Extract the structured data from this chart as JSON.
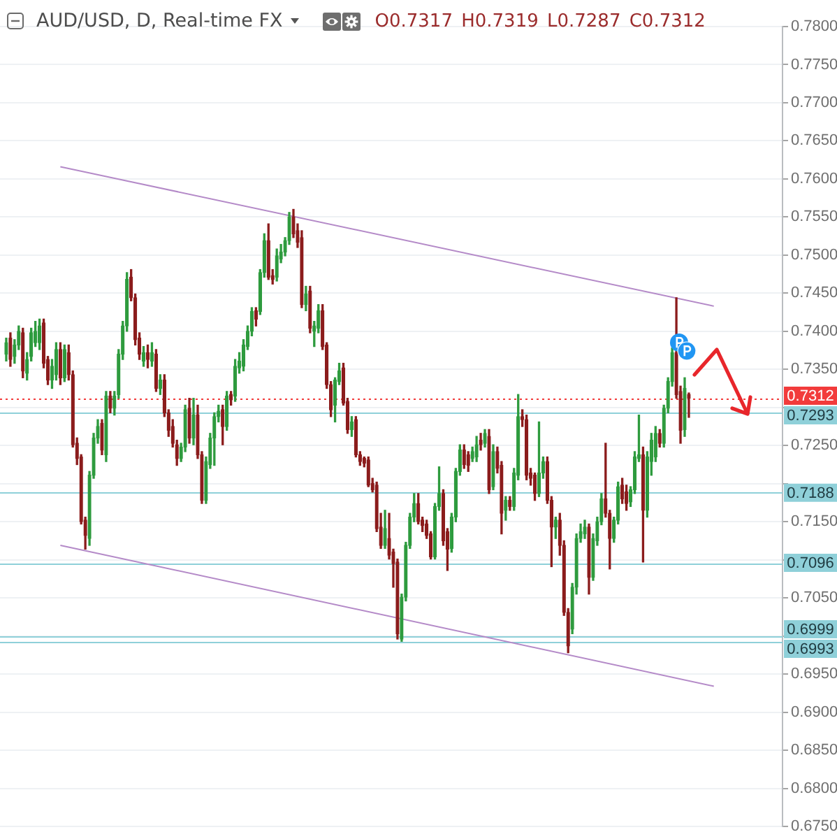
{
  "chart_data": {
    "type": "candlestick",
    "title": "AUD/USD, D, Real-time FX",
    "subtitle": "O0.7317 H0.7319 L0.7287 C0.7312",
    "categories": [
      null,
      null,
      null,
      null,
      null,
      null,
      null,
      null,
      null,
      null,
      null,
      null,
      null,
      null,
      null,
      null,
      null,
      null,
      null,
      null,
      null,
      null,
      null,
      null,
      null,
      null,
      null,
      null,
      null,
      null,
      null,
      null,
      null,
      null,
      null,
      null,
      null,
      null,
      null,
      null,
      null,
      null,
      null,
      null,
      null,
      null,
      null,
      null,
      null,
      null,
      null,
      null,
      null,
      null,
      null,
      null,
      null,
      null,
      null,
      null,
      null,
      null,
      null,
      null,
      null,
      null,
      null,
      null,
      null,
      null,
      null,
      null,
      null,
      null,
      null,
      null,
      null,
      null,
      null,
      null,
      null,
      null,
      null,
      null,
      null,
      null,
      null,
      null,
      null,
      null,
      null,
      null,
      null,
      null,
      null,
      null,
      null,
      null,
      null,
      null,
      null,
      null,
      null,
      null,
      null,
      null,
      null,
      null,
      null,
      null,
      null,
      null,
      null,
      null,
      null,
      null,
      null,
      null,
      null,
      null,
      null,
      null,
      null,
      null,
      null,
      null,
      null,
      null,
      null,
      null,
      null,
      null,
      null,
      null,
      null,
      null,
      null,
      null,
      null,
      null,
      null,
      null,
      null,
      null,
      null,
      null,
      null,
      null,
      null,
      null,
      null,
      null,
      null,
      null,
      null,
      null,
      null,
      null,
      null,
      null,
      null,
      null,
      null,
      null,
      null,
      null,
      null,
      null,
      null,
      null,
      null,
      null,
      null,
      null,
      null,
      null,
      null,
      null,
      null,
      null,
      null,
      null,
      null,
      null,
      null,
      null,
      null,
      null
    ],
    "ohlc": [
      null,
      [
        0.737,
        0.7391,
        0.7361,
        0.7385
      ],
      [
        0.7391,
        0.7398,
        0.7354,
        0.7363
      ],
      [
        0.7367,
        0.7389,
        0.7358,
        0.7382
      ],
      [
        0.7382,
        0.7407,
        0.7376,
        0.74
      ],
      [
        0.7398,
        0.7404,
        0.7339,
        0.7348
      ],
      [
        0.7345,
        0.7372,
        0.7336,
        0.7363
      ],
      [
        0.7367,
        0.7404,
        0.7361,
        0.7398
      ],
      [
        0.7385,
        0.7413,
        0.738,
        0.74
      ],
      [
        0.7385,
        0.7416,
        0.7376,
        0.7407
      ],
      [
        0.7411,
        0.7416,
        0.7352,
        0.7358
      ],
      [
        0.7363,
        0.7367,
        0.733,
        0.7336
      ],
      [
        0.7336,
        0.7363,
        0.7325,
        0.7354
      ],
      [
        0.7343,
        0.7385,
        0.7336,
        0.7376
      ],
      [
        0.7376,
        0.7385,
        0.733,
        0.7339
      ],
      [
        0.7339,
        0.7382,
        0.7334,
        0.7376
      ],
      [
        0.7372,
        0.7382,
        0.7336,
        0.7343
      ],
      [
        0.7343,
        0.7348,
        0.7248,
        0.7251
      ],
      [
        0.7253,
        0.726,
        0.7225,
        0.7233
      ],
      [
        0.7235,
        0.7238,
        0.7147,
        0.715
      ],
      [
        0.7152,
        0.7156,
        0.7114,
        0.7132
      ],
      [
        0.7128,
        0.7216,
        0.7119,
        0.7211
      ],
      [
        0.7211,
        0.7266,
        0.7207,
        0.726
      ],
      [
        0.726,
        0.7284,
        0.7253,
        0.7275
      ],
      [
        0.7279,
        0.7284,
        0.7238,
        0.7244
      ],
      [
        0.7238,
        0.7321,
        0.7229,
        0.7315
      ],
      [
        0.7315,
        0.7321,
        0.7293,
        0.7299
      ],
      [
        0.7299,
        0.7321,
        0.729,
        0.7315
      ],
      [
        0.7317,
        0.7376,
        0.7312,
        0.737
      ],
      [
        0.737,
        0.7413,
        0.7363,
        0.7407
      ],
      [
        0.7407,
        0.7477,
        0.74,
        0.7468
      ],
      [
        0.7471,
        0.7481,
        0.744,
        0.7444
      ],
      [
        0.7444,
        0.7449,
        0.7382,
        0.7389
      ],
      [
        0.7391,
        0.7398,
        0.7363,
        0.737
      ],
      [
        0.7361,
        0.738,
        0.7354,
        0.7372
      ],
      [
        0.7372,
        0.7382,
        0.7352,
        0.7363
      ],
      [
        0.7361,
        0.7385,
        0.7354,
        0.7372
      ],
      [
        0.737,
        0.7376,
        0.7321,
        0.7325
      ],
      [
        0.7325,
        0.7343,
        0.7317,
        0.7336
      ],
      [
        0.7336,
        0.7343,
        0.7288,
        0.7293
      ],
      [
        0.7293,
        0.7297,
        0.7262,
        0.727
      ],
      [
        0.7275,
        0.7284,
        0.7248,
        0.7253
      ],
      [
        0.7251,
        0.7257,
        0.7224,
        0.7233
      ],
      [
        0.7233,
        0.7253,
        0.7229,
        0.7248
      ],
      [
        0.7248,
        0.7303,
        0.7242,
        0.7297
      ],
      [
        0.7299,
        0.7312,
        0.7253,
        0.726
      ],
      [
        0.726,
        0.7312,
        0.7251,
        0.729
      ],
      [
        0.729,
        0.7303,
        0.7233,
        0.7238
      ],
      [
        0.7238,
        0.7242,
        0.7174,
        0.7178
      ],
      [
        0.7178,
        0.7235,
        0.7174,
        0.7229
      ],
      [
        0.7225,
        0.7266,
        0.722,
        0.726
      ],
      [
        0.726,
        0.7293,
        0.7224,
        0.7288
      ],
      [
        0.7288,
        0.7303,
        0.7281,
        0.7295
      ],
      [
        0.7297,
        0.7303,
        0.7251,
        0.7275
      ],
      [
        0.7275,
        0.7321,
        0.727,
        0.7315
      ],
      [
        0.7317,
        0.7321,
        0.7303,
        0.731
      ],
      [
        0.7315,
        0.7363,
        0.7308,
        0.7354
      ],
      [
        0.7352,
        0.7372,
        0.7345,
        0.7361
      ],
      [
        0.7354,
        0.7389,
        0.7348,
        0.7382
      ],
      [
        0.738,
        0.7407,
        0.7376,
        0.74
      ],
      [
        0.74,
        0.7431,
        0.7394,
        0.7426
      ],
      [
        0.7427,
        0.7431,
        0.7407,
        0.7416
      ],
      [
        0.7426,
        0.7481,
        0.7422,
        0.7477
      ],
      [
        0.7477,
        0.7528,
        0.7471,
        0.7519
      ],
      [
        0.7519,
        0.7541,
        0.7468,
        0.7471
      ],
      [
        0.7473,
        0.7481,
        0.7462,
        0.7468
      ],
      [
        0.7471,
        0.7508,
        0.7466,
        0.7499
      ],
      [
        0.7495,
        0.7514,
        0.749,
        0.7504
      ],
      [
        0.7504,
        0.7523,
        0.7499,
        0.7519
      ],
      [
        0.7519,
        0.7556,
        0.7514,
        0.755
      ],
      [
        0.755,
        0.756,
        0.7523,
        0.7528
      ],
      [
        0.7532,
        0.7541,
        0.751,
        0.7517
      ],
      [
        0.7523,
        0.7532,
        0.7431,
        0.7435
      ],
      [
        0.7435,
        0.7459,
        0.7427,
        0.7449
      ],
      [
        0.7453,
        0.7459,
        0.7398,
        0.7404
      ],
      [
        0.74,
        0.7413,
        0.738,
        0.7407
      ],
      [
        0.7404,
        0.7435,
        0.7398,
        0.7427
      ],
      [
        0.7427,
        0.7435,
        0.7376,
        0.738
      ],
      [
        0.7382,
        0.7385,
        0.7325,
        0.733
      ],
      [
        0.733,
        0.7334,
        0.7288,
        0.7297
      ],
      [
        0.7303,
        0.7339,
        0.7281,
        0.7336
      ],
      [
        0.7334,
        0.7358,
        0.733,
        0.7348
      ],
      [
        0.7352,
        0.7358,
        0.7303,
        0.7306
      ],
      [
        0.7308,
        0.7312,
        0.7266,
        0.7271
      ],
      [
        0.7271,
        0.7288,
        0.7262,
        0.7281
      ],
      [
        0.7284,
        0.7288,
        0.7235,
        0.7238
      ],
      [
        0.7238,
        0.7242,
        0.7224,
        0.7229
      ],
      [
        0.7233,
        0.7235,
        0.7222,
        0.7227
      ],
      [
        0.7231,
        0.7235,
        0.7196,
        0.7198
      ],
      [
        0.72,
        0.7207,
        0.7189,
        0.7192
      ],
      [
        0.7198,
        0.7202,
        0.7137,
        0.7141
      ],
      [
        0.7143,
        0.7161,
        0.7115,
        0.7119
      ],
      [
        0.7119,
        0.7165,
        0.7115,
        0.7141
      ],
      [
        0.7128,
        0.7161,
        0.7101,
        0.7106
      ],
      [
        0.711,
        0.7114,
        0.7064,
        0.7095
      ],
      [
        0.7097,
        0.7101,
        0.6996,
        0.7003
      ],
      [
        0.6996,
        0.7055,
        0.6993,
        0.7051
      ],
      [
        0.7051,
        0.7123,
        0.7046,
        0.7119
      ],
      [
        0.7119,
        0.7161,
        0.7115,
        0.7156
      ],
      [
        0.7156,
        0.7187,
        0.715,
        0.7174
      ],
      [
        0.7174,
        0.7187,
        0.7147,
        0.715
      ],
      [
        0.7152,
        0.7156,
        0.7137,
        0.7145
      ],
      [
        0.7147,
        0.7152,
        0.7128,
        0.7132
      ],
      [
        0.7134,
        0.7137,
        0.7101,
        0.7104
      ],
      [
        0.7104,
        0.7174,
        0.7101,
        0.717
      ],
      [
        0.717,
        0.7222,
        0.7165,
        0.7187
      ],
      [
        0.7187,
        0.7192,
        0.7119,
        0.7125
      ],
      [
        0.7137,
        0.7141,
        0.7086,
        0.7114
      ],
      [
        0.7115,
        0.7161,
        0.711,
        0.7156
      ],
      [
        0.7156,
        0.722,
        0.715,
        0.7216
      ],
      [
        0.7216,
        0.7251,
        0.7211,
        0.7244
      ],
      [
        0.7244,
        0.7251,
        0.722,
        0.7225
      ],
      [
        0.7238,
        0.7242,
        0.7216,
        0.7224
      ],
      [
        0.7233,
        0.7248,
        0.7229,
        0.7242
      ],
      [
        0.7235,
        0.7262,
        0.7229,
        0.7251
      ],
      [
        0.7257,
        0.7266,
        0.7244,
        0.7251
      ],
      [
        0.7253,
        0.7271,
        0.7248,
        0.7266
      ],
      [
        0.7262,
        0.7271,
        0.7187,
        0.7192
      ],
      [
        0.7196,
        0.7251,
        0.7192,
        0.7242
      ],
      [
        0.7242,
        0.7248,
        0.7214,
        0.722
      ],
      [
        0.7224,
        0.7229,
        0.7134,
        0.7161
      ],
      [
        0.7165,
        0.7183,
        0.7152,
        0.7178
      ],
      [
        0.7178,
        0.7183,
        0.7165,
        0.717
      ],
      [
        0.717,
        0.722,
        0.7165,
        0.7214
      ],
      [
        0.7211,
        0.7317,
        0.7205,
        0.7288
      ],
      [
        0.7288,
        0.7297,
        0.7275,
        0.7284
      ],
      [
        0.7284,
        0.729,
        0.7205,
        0.7211
      ],
      [
        0.7214,
        0.722,
        0.7198,
        0.7207
      ],
      [
        0.7211,
        0.7214,
        0.7178,
        0.7187
      ],
      [
        0.7187,
        0.7281,
        0.7183,
        0.7214
      ],
      [
        0.7214,
        0.7235,
        0.7207,
        0.7229
      ],
      [
        0.7229,
        0.7235,
        0.7174,
        0.7178
      ],
      [
        0.7178,
        0.7183,
        0.7091,
        0.7143
      ],
      [
        0.7143,
        0.7156,
        0.7128,
        0.7152
      ],
      [
        0.7152,
        0.7161,
        0.7106,
        0.7119
      ],
      [
        0.7119,
        0.7125,
        0.7027,
        0.7031
      ],
      [
        0.7031,
        0.7036,
        0.6978,
        0.6987
      ],
      [
        0.7009,
        0.7069,
        0.7003,
        0.7064
      ],
      [
        0.7064,
        0.7134,
        0.7055,
        0.7128
      ],
      [
        0.7128,
        0.7147,
        0.7123,
        0.7137
      ],
      [
        0.7134,
        0.7152,
        0.7128,
        0.7143
      ],
      [
        0.7143,
        0.7147,
        0.7055,
        0.7077
      ],
      [
        0.7077,
        0.7134,
        0.7073,
        0.7128
      ],
      [
        0.7125,
        0.7156,
        0.7119,
        0.715
      ],
      [
        0.715,
        0.7187,
        0.7146,
        0.718
      ],
      [
        0.718,
        0.7253,
        0.7156,
        0.7161
      ],
      [
        0.7161,
        0.7165,
        0.7088,
        0.7128
      ],
      [
        0.7128,
        0.7156,
        0.7123,
        0.7152
      ],
      [
        0.7152,
        0.7202,
        0.7147,
        0.7196
      ],
      [
        0.7198,
        0.7207,
        0.7174,
        0.718
      ],
      [
        0.7189,
        0.7198,
        0.7165,
        0.7174
      ],
      [
        0.7176,
        0.7196,
        0.717,
        0.7192
      ],
      [
        0.7192,
        0.7242,
        0.7187,
        0.7235
      ],
      [
        0.7233,
        0.729,
        0.7229,
        0.7238
      ],
      [
        0.7238,
        0.7248,
        0.7097,
        0.7165
      ],
      [
        0.7165,
        0.7242,
        0.7156,
        0.7235
      ],
      [
        0.7229,
        0.7266,
        0.7211,
        0.7257
      ],
      [
        0.7235,
        0.7275,
        0.7229,
        0.7266
      ],
      [
        0.7266,
        0.7271,
        0.7248,
        0.7253
      ],
      [
        0.7253,
        0.7303,
        0.7248,
        0.7299
      ],
      [
        0.7299,
        0.7339,
        0.7293,
        0.7334
      ],
      [
        0.7334,
        0.7378,
        0.7328,
        0.7372
      ],
      [
        0.7372,
        0.7444,
        0.7312,
        0.7317
      ],
      [
        0.7321,
        0.7328,
        0.7253,
        0.727
      ],
      [
        0.7271,
        0.7339,
        0.7262,
        0.7325
      ],
      [
        0.7317,
        0.7319,
        0.7287,
        0.7312
      ],
      null,
      null,
      null,
      null,
      null,
      null,
      null,
      null,
      null,
      null,
      null,
      null,
      null,
      null,
      null,
      null,
      null,
      null,
      null,
      null,
      null,
      null
    ],
    "colors": [
      null,
      "#2e9b3e",
      "#8b1c1c",
      "#2e9b3e",
      "#2e9b3e",
      "#8b1c1c",
      "#2e9b3e",
      "#2e9b3e",
      "#2e9b3e",
      "#2e9b3e",
      "#8b1c1c",
      "#8b1c1c",
      "#2e9b3e",
      "#2e9b3e",
      "#8b1c1c",
      "#2e9b3e",
      "#8b1c1c",
      "#8b1c1c",
      "#8b1c1c",
      "#8b1c1c",
      "#8b1c1c",
      "#2e9b3e",
      "#2e9b3e",
      "#2e9b3e",
      "#8b1c1c",
      "#2e9b3e",
      "#8b1c1c",
      "#2e9b3e",
      "#2e9b3e",
      "#2e9b3e",
      "#2e9b3e",
      "#8b1c1c",
      "#8b1c1c",
      "#8b1c1c",
      "#2e9b3e",
      "#8b1c1c",
      "#2e9b3e",
      "#8b1c1c",
      "#2e9b3e",
      "#8b1c1c",
      "#8b1c1c",
      "#8b1c1c",
      "#8b1c1c",
      "#2e9b3e",
      "#2e9b3e",
      "#8b1c1c",
      "#2e9b3e",
      "#8b1c1c",
      "#8b1c1c",
      "#2e9b3e",
      "#2e9b3e",
      "#2e9b3e",
      "#2e9b3e",
      "#8b1c1c",
      "#2e9b3e",
      "#8b1c1c",
      "#2e9b3e",
      "#2e9b3e",
      "#2e9b3e",
      "#2e9b3e",
      "#2e9b3e",
      "#8b1c1c",
      "#2e9b3e",
      "#2e9b3e",
      "#8b1c1c",
      "#8b1c1c",
      "#2e9b3e",
      "#2e9b3e",
      "#2e9b3e",
      "#2e9b3e",
      "#8b1c1c",
      "#8b1c1c",
      "#8b1c1c",
      "#2e9b3e",
      "#8b1c1c",
      "#2e9b3e",
      "#2e9b3e",
      "#8b1c1c",
      "#8b1c1c",
      "#8b1c1c",
      "#2e9b3e",
      "#2e9b3e",
      "#8b1c1c",
      "#8b1c1c",
      "#2e9b3e",
      "#8b1c1c",
      "#8b1c1c",
      "#8b1c1c",
      "#8b1c1c",
      "#8b1c1c",
      "#8b1c1c",
      "#8b1c1c",
      "#2e9b3e",
      "#8b1c1c",
      "#8b1c1c",
      "#8b1c1c",
      "#2e9b3e",
      "#2e9b3e",
      "#2e9b3e",
      "#2e9b3e",
      "#8b1c1c",
      "#8b1c1c",
      "#8b1c1c",
      "#8b1c1c",
      "#2e9b3e",
      "#2e9b3e",
      "#8b1c1c",
      "#8b1c1c",
      "#2e9b3e",
      "#2e9b3e",
      "#2e9b3e",
      "#8b1c1c",
      "#8b1c1c",
      "#2e9b3e",
      "#2e9b3e",
      "#8b1c1c",
      "#2e9b3e",
      "#8b1c1c",
      "#2e9b3e",
      "#8b1c1c",
      "#8b1c1c",
      "#2e9b3e",
      "#8b1c1c",
      "#2e9b3e",
      "#2e9b3e",
      "#8b1c1c",
      "#8b1c1c",
      "#8b1c1c",
      "#8b1c1c",
      "#2e9b3e",
      "#2e9b3e",
      "#8b1c1c",
      "#8b1c1c",
      "#2e9b3e",
      "#8b1c1c",
      "#8b1c1c",
      "#8b1c1c",
      "#2e9b3e",
      "#2e9b3e",
      "#2e9b3e",
      "#2e9b3e",
      "#8b1c1c",
      "#2e9b3e",
      "#2e9b3e",
      "#2e9b3e",
      "#8b1c1c",
      "#8b1c1c",
      "#2e9b3e",
      "#2e9b3e",
      "#8b1c1c",
      "#8b1c1c",
      "#2e9b3e",
      "#2e9b3e",
      "#2e9b3e",
      "#8b1c1c",
      "#2e9b3e",
      "#2e9b3e",
      "#2e9b3e",
      "#8b1c1c",
      "#2e9b3e",
      "#2e9b3e",
      "#2e9b3e",
      "#8b1c1c",
      "#8b1c1c",
      "#2e9b3e",
      "#8b1c1c",
      null,
      null,
      null,
      null,
      null,
      null,
      null,
      null,
      null,
      null,
      null,
      null,
      null,
      null,
      null,
      null,
      null,
      null,
      null,
      null,
      null,
      null
    ],
    "series": [
      {
        "type": "line",
        "color": "#b48ac8",
        "values": [
          null,
          null,
          null,
          null,
          null,
          null,
          null,
          null,
          null,
          null,
          null,
          null,
          null,
          null,
          0.7616,
          null,
          null,
          null,
          null,
          null,
          null,
          null,
          null,
          null,
          null,
          null,
          null,
          null,
          null,
          null,
          null,
          null,
          null,
          null,
          null,
          null,
          null,
          null,
          null,
          null,
          null,
          null,
          null,
          null,
          null,
          null,
          null,
          null,
          null,
          null,
          null,
          null,
          null,
          null,
          null,
          null,
          null,
          null,
          null,
          null,
          null,
          null,
          null,
          null,
          null,
          null,
          null,
          null,
          null,
          null,
          null,
          null,
          null,
          null,
          null,
          null,
          null,
          null,
          null,
          null,
          null,
          null,
          null,
          null,
          null,
          null,
          null,
          null,
          null,
          null,
          null,
          null,
          null,
          null,
          null,
          null,
          null,
          null,
          null,
          null,
          null,
          null,
          null,
          null,
          null,
          null,
          null,
          null,
          null,
          null,
          null,
          null,
          null,
          null,
          null,
          null,
          null,
          null,
          null,
          null,
          null,
          null,
          null,
          null,
          null,
          null,
          null,
          null,
          null,
          null,
          null,
          null,
          null,
          null,
          null,
          null,
          null,
          null,
          null,
          null,
          null,
          null,
          null,
          null,
          null,
          null,
          null,
          null,
          null,
          null,
          null,
          null,
          null,
          null,
          null,
          null,
          null,
          null,
          null,
          null,
          null,
          null,
          null,
          null,
          null,
          null,
          null,
          null,
          null,
          null,
          null,
          0.7433,
          null,
          null,
          null,
          null,
          null,
          null,
          null,
          null,
          null,
          null,
          null,
          null,
          null,
          null,
          null,
          null
        ]
      },
      {
        "type": "line",
        "color": "#b48ac8",
        "values": [
          null,
          null,
          null,
          null,
          null,
          null,
          null,
          null,
          null,
          null,
          null,
          null,
          null,
          null,
          0.7119,
          null,
          null,
          null,
          null,
          null,
          null,
          null,
          null,
          null,
          null,
          null,
          null,
          null,
          null,
          null,
          null,
          null,
          null,
          null,
          null,
          null,
          null,
          null,
          null,
          null,
          null,
          null,
          null,
          null,
          null,
          null,
          null,
          null,
          null,
          null,
          null,
          null,
          null,
          null,
          null,
          null,
          null,
          null,
          null,
          null,
          null,
          null,
          null,
          null,
          null,
          null,
          null,
          null,
          null,
          null,
          null,
          null,
          null,
          null,
          null,
          null,
          null,
          null,
          null,
          null,
          null,
          null,
          null,
          null,
          null,
          null,
          null,
          null,
          null,
          null,
          null,
          null,
          null,
          null,
          null,
          null,
          null,
          null,
          null,
          null,
          null,
          null,
          null,
          null,
          null,
          null,
          null,
          null,
          null,
          null,
          null,
          null,
          null,
          null,
          null,
          null,
          null,
          null,
          null,
          null,
          null,
          null,
          null,
          null,
          null,
          null,
          null,
          null,
          null,
          null,
          null,
          null,
          null,
          null,
          null,
          null,
          null,
          null,
          null,
          null,
          null,
          null,
          null,
          null,
          null,
          null,
          null,
          null,
          null,
          null,
          null,
          null,
          null,
          null,
          null,
          null,
          null,
          null,
          null,
          null,
          null,
          null,
          null,
          null,
          null,
          null,
          null,
          null,
          null,
          null,
          null,
          0.6934,
          null,
          null,
          null,
          null,
          null,
          null,
          null,
          null,
          null,
          null,
          null,
          null,
          null,
          null,
          null,
          null
        ]
      }
    ],
    "ylim": [
      0.675,
      0.78
    ],
    "yticks": [
      {
        "value": 0.675,
        "label": "0.6750"
      },
      {
        "value": 0.68,
        "label": "0.6800"
      },
      {
        "value": 0.685,
        "label": "0.6850"
      },
      {
        "value": 0.69,
        "label": "0.6900"
      },
      {
        "value": 0.695,
        "label": "0.6950"
      },
      {
        "value": 0.7,
        "label": null
      },
      {
        "value": 0.705,
        "label": "0.7050"
      },
      {
        "value": 0.71,
        "label": null
      },
      {
        "value": 0.715,
        "label": "0.7150"
      },
      {
        "value": 0.72,
        "label": null
      },
      {
        "value": 0.725,
        "label": "0.7250"
      },
      {
        "value": 0.73,
        "label": null
      },
      {
        "value": 0.735,
        "label": "0.7350"
      },
      {
        "value": 0.74,
        "label": "0.7400"
      },
      {
        "value": 0.745,
        "label": "0.7450"
      },
      {
        "value": 0.75,
        "label": "0.7500"
      },
      {
        "value": 0.755,
        "label": "0.7550"
      },
      {
        "value": 0.76,
        "label": "0.7600"
      },
      {
        "value": 0.765,
        "label": "0.7650"
      },
      {
        "value": 0.77,
        "label": "0.7700"
      },
      {
        "value": 0.775,
        "label": "0.7750"
      },
      {
        "value": 0.78,
        "label": "0.7800"
      }
    ],
    "ref_lines": [
      {
        "axis": "y",
        "value": 0.7312,
        "label": "0.7312",
        "color": "#f23b3b",
        "line_style": "dotted"
      },
      {
        "axis": "y",
        "value": 0.7293,
        "label": "0.7293",
        "color": "#8fd0d9",
        "line_style": "solid"
      },
      {
        "axis": "y",
        "value": 0.7188,
        "label": "0.7188",
        "color": "#8fd0d9",
        "line_style": "solid"
      },
      {
        "axis": "y",
        "value": 0.7096,
        "label": "0.7096",
        "color": "#8fd0d9",
        "line_style": "solid"
      },
      {
        "axis": "y",
        "value": 0.6999,
        "label": "0.6999",
        "color": "#8fd0d9",
        "line_style": "solid"
      },
      {
        "axis": "y",
        "value": 0.6993,
        "label": "0.6993",
        "color": "#8fd0d9",
        "line_style": "solid"
      }
    ],
    "grid": "y",
    "tick_labels": "y"
  }
}
